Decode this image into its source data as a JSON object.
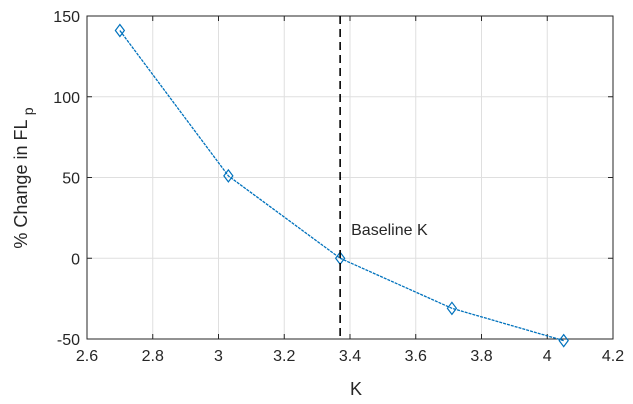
{
  "chart_data": {
    "type": "line",
    "title": "",
    "xlabel": "K",
    "ylabel_main": "% Change in FL",
    "ylabel_sub": "p",
    "xlim": [
      2.6,
      4.2
    ],
    "ylim": [
      -50,
      150
    ],
    "x_ticks": [
      2.6,
      2.8,
      3.0,
      3.2,
      3.4,
      3.6,
      3.8,
      4.0,
      4.2
    ],
    "x_tick_labels": [
      "2.6",
      "2.8",
      "3",
      "3.2",
      "3.4",
      "3.6",
      "3.8",
      "4",
      "4.2"
    ],
    "y_ticks": [
      -50,
      0,
      50,
      100,
      150
    ],
    "y_tick_labels": [
      "-50",
      "0",
      "50",
      "100",
      "150"
    ],
    "grid": true,
    "series": [
      {
        "x": [
          2.7,
          3.03,
          3.37,
          3.71,
          4.05
        ],
        "y": [
          141,
          51,
          0,
          -31,
          -51
        ],
        "color": "#0072BD",
        "marker": "diamond"
      }
    ],
    "annotations": [
      {
        "type": "vline",
        "x": 3.37,
        "style": "dashed",
        "color": "#000000",
        "label": "Baseline K",
        "label_y": 18
      }
    ]
  }
}
